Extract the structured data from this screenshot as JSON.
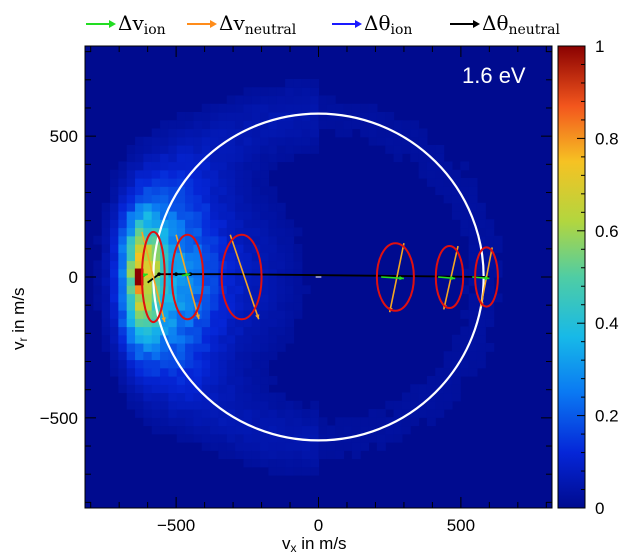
{
  "chart_data": {
    "type": "heatmap",
    "annotation": "1.6 eV",
    "xlabel": {
      "main": "v",
      "sub": "x",
      "rest": " in m/s"
    },
    "ylabel": {
      "main": "v",
      "sub": "r",
      "rest": " in m/s"
    },
    "xlim": [
      -820,
      820
    ],
    "ylim": [
      -820,
      820
    ],
    "x_ticks": [
      -500,
      0,
      500
    ],
    "y_ticks": [
      500,
      0,
      -500
    ],
    "x_tick_labels": [
      "−500",
      "0",
      "500"
    ],
    "y_tick_labels": [
      "500",
      "0",
      "−500"
    ],
    "colorbar": {
      "range": [
        0,
        1
      ],
      "ticks": [
        0,
        0.2,
        0.4,
        0.6,
        0.8,
        1
      ],
      "tick_labels": [
        "0",
        "0.2",
        "0.4",
        "0.6",
        "0.8",
        "1"
      ]
    },
    "legend": [
      {
        "name": "Δv",
        "sub": "ion",
        "color": "#22dd22"
      },
      {
        "name": "Δv",
        "sub": "neutral",
        "color": "#ff8c1a"
      },
      {
        "name": "Δθ",
        "sub": "ion",
        "color": "#1a1aff"
      },
      {
        "name": "Δθ",
        "sub": "neutral",
        "color": "#000000"
      }
    ],
    "circle": {
      "center": [
        0,
        0
      ],
      "radius": 580,
      "color": "#ffffff"
    },
    "density_blobs": [
      {
        "vx": -620,
        "vr": 0,
        "sigma_x": 45,
        "sigma_r": 150,
        "amp": 0.55
      },
      {
        "vx": -520,
        "vr": 0,
        "sigma_x": 110,
        "sigma_r": 230,
        "amp": 0.25
      },
      {
        "vx": -300,
        "vr": 0,
        "sigma_x": 160,
        "sigma_r": 220,
        "amp": 0.07
      }
    ],
    "hot_spot": {
      "vx": -630,
      "vr": 0,
      "value": 1.0
    },
    "ellipses": [
      {
        "vx": -580,
        "vr": 0,
        "rx": 40,
        "rr": 160
      },
      {
        "vx": -460,
        "vr": 0,
        "rx": 55,
        "rr": 150
      },
      {
        "vx": -270,
        "vr": 0,
        "rx": 70,
        "rr": 150
      },
      {
        "vx": 270,
        "vr": 0,
        "rx": 65,
        "rr": 120
      },
      {
        "vx": 460,
        "vr": 0,
        "rx": 48,
        "rr": 110
      },
      {
        "vx": 590,
        "vr": 0,
        "rx": 40,
        "rr": 105
      }
    ],
    "orange_arrows": [
      {
        "from": [
          -620,
          160
        ],
        "to": [
          -540,
          -160
        ]
      },
      {
        "from": [
          -500,
          150
        ],
        "to": [
          -420,
          -150
        ]
      },
      {
        "from": [
          -310,
          150
        ],
        "to": [
          -210,
          -150
        ]
      },
      {
        "from": [
          300,
          120
        ],
        "to": [
          250,
          -125
        ]
      },
      {
        "from": [
          490,
          110
        ],
        "to": [
          440,
          -115
        ]
      },
      {
        "from": [
          610,
          105
        ],
        "to": [
          570,
          -105
        ]
      }
    ],
    "green_arrows": [
      {
        "from": [
          -620,
          5
        ],
        "to": [
          -600,
          10
        ]
      },
      {
        "from": [
          -480,
          5
        ],
        "to": [
          -450,
          10
        ]
      },
      {
        "from": [
          220,
          0
        ],
        "to": [
          300,
          -5
        ]
      },
      {
        "from": [
          420,
          0
        ],
        "to": [
          480,
          -5
        ]
      },
      {
        "from": [
          540,
          0
        ],
        "to": [
          600,
          -5
        ]
      }
    ],
    "black_line": [
      [
        -600,
        -20
      ],
      [
        -560,
        10
      ],
      [
        -500,
        10
      ],
      [
        -300,
        10
      ],
      [
        600,
        0
      ]
    ]
  }
}
